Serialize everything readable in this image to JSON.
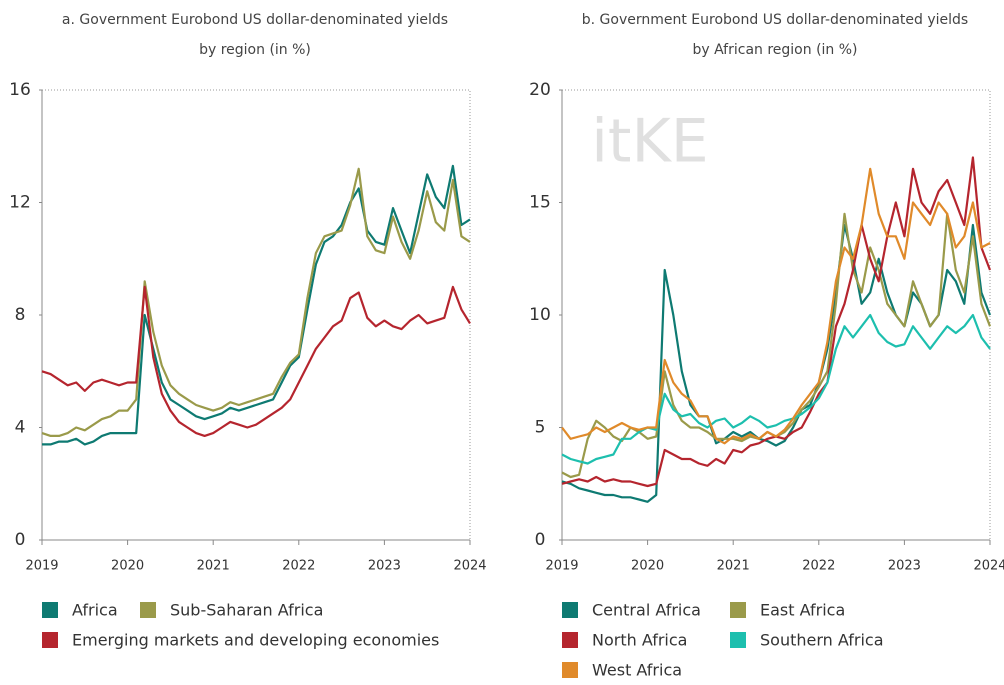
{
  "watermark": "itKE",
  "chart_data": [
    {
      "type": "line",
      "title": [
        "a. Government Eurobond US dollar-denominated yields",
        "by region (in %)"
      ],
      "x": [
        2019,
        2019.1,
        2019.2,
        2019.3,
        2019.4,
        2019.5,
        2019.6,
        2019.7,
        2019.8,
        2019.9,
        2020,
        2020.1,
        2020.2,
        2020.3,
        2020.4,
        2020.5,
        2020.6,
        2020.7,
        2020.8,
        2020.9,
        2021,
        2021.1,
        2021.2,
        2021.3,
        2021.4,
        2021.5,
        2021.6,
        2021.7,
        2021.8,
        2021.9,
        2022,
        2022.1,
        2022.2,
        2022.3,
        2022.4,
        2022.5,
        2022.6,
        2022.7,
        2022.8,
        2022.9,
        2023,
        2023.1,
        2023.2,
        2023.3,
        2023.4,
        2023.5,
        2023.6,
        2023.7,
        2023.8,
        2023.9,
        2024
      ],
      "xlim": [
        2019,
        2024
      ],
      "xticks": [
        2019,
        2020,
        2021,
        2022,
        2023,
        2024
      ],
      "ylim": [
        0,
        16
      ],
      "yticks": [
        0,
        4,
        8,
        12,
        16
      ],
      "series": [
        {
          "name": "Africa",
          "color": "#0e7a72",
          "values": [
            3.4,
            3.4,
            3.5,
            3.5,
            3.6,
            3.4,
            3.5,
            3.7,
            3.8,
            3.8,
            3.8,
            3.8,
            8.0,
            6.8,
            5.6,
            5.0,
            4.8,
            4.6,
            4.4,
            4.3,
            4.4,
            4.5,
            4.7,
            4.6,
            4.7,
            4.8,
            4.9,
            5.0,
            5.6,
            6.2,
            6.5,
            8.2,
            9.8,
            10.6,
            10.8,
            11.2,
            12.0,
            12.5,
            11.0,
            10.6,
            10.5,
            11.8,
            11.0,
            10.2,
            11.6,
            13.0,
            12.2,
            11.8,
            13.3,
            11.2,
            11.4
          ]
        },
        {
          "name": "Sub-Saharan Africa",
          "color": "#9a9a4a",
          "values": [
            3.8,
            3.7,
            3.7,
            3.8,
            4.0,
            3.9,
            4.1,
            4.3,
            4.4,
            4.6,
            4.6,
            5.0,
            9.2,
            7.4,
            6.2,
            5.5,
            5.2,
            5.0,
            4.8,
            4.7,
            4.6,
            4.7,
            4.9,
            4.8,
            4.9,
            5.0,
            5.1,
            5.2,
            5.8,
            6.3,
            6.6,
            8.6,
            10.2,
            10.8,
            10.9,
            11.0,
            11.9,
            13.2,
            10.8,
            10.3,
            10.2,
            11.5,
            10.6,
            10.0,
            11.0,
            12.4,
            11.3,
            11.0,
            12.8,
            10.8,
            10.6
          ]
        },
        {
          "name": "Emerging markets and developing economies",
          "color": "#b5252e",
          "values": [
            6.0,
            5.9,
            5.7,
            5.5,
            5.6,
            5.3,
            5.6,
            5.7,
            5.6,
            5.5,
            5.6,
            5.6,
            9.0,
            6.5,
            5.2,
            4.6,
            4.2,
            4.0,
            3.8,
            3.7,
            3.8,
            4.0,
            4.2,
            4.1,
            4.0,
            4.1,
            4.3,
            4.5,
            4.7,
            5.0,
            5.6,
            6.2,
            6.8,
            7.2,
            7.6,
            7.8,
            8.6,
            8.8,
            7.9,
            7.6,
            7.8,
            7.6,
            7.5,
            7.8,
            8.0,
            7.7,
            7.8,
            7.9,
            9.0,
            8.2,
            7.7
          ]
        }
      ]
    },
    {
      "type": "line",
      "title": [
        "b. Government Eurobond US dollar-denominated yields",
        "by African region (in %)"
      ],
      "x": [
        2019,
        2019.1,
        2019.2,
        2019.3,
        2019.4,
        2019.5,
        2019.6,
        2019.7,
        2019.8,
        2019.9,
        2020,
        2020.1,
        2020.2,
        2020.3,
        2020.4,
        2020.5,
        2020.6,
        2020.7,
        2020.8,
        2020.9,
        2021,
        2021.1,
        2021.2,
        2021.3,
        2021.4,
        2021.5,
        2021.6,
        2021.7,
        2021.8,
        2021.9,
        2022,
        2022.1,
        2022.2,
        2022.3,
        2022.4,
        2022.5,
        2022.6,
        2022.7,
        2022.8,
        2022.9,
        2023,
        2023.1,
        2023.2,
        2023.3,
        2023.4,
        2023.5,
        2023.6,
        2023.7,
        2023.8,
        2023.9,
        2024
      ],
      "xlim": [
        2019,
        2024
      ],
      "xticks": [
        2019,
        2020,
        2021,
        2022,
        2023,
        2024
      ],
      "ylim": [
        0,
        20
      ],
      "yticks": [
        0,
        5,
        10,
        15,
        20
      ],
      "series": [
        {
          "name": "Central Africa",
          "color": "#0e7a72",
          "values": [
            2.6,
            2.5,
            2.3,
            2.2,
            2.1,
            2.0,
            2.0,
            1.9,
            1.9,
            1.8,
            1.7,
            2.0,
            12.0,
            10.0,
            7.5,
            6.0,
            5.5,
            5.5,
            4.3,
            4.5,
            4.8,
            4.6,
            4.8,
            4.5,
            4.4,
            4.2,
            4.4,
            5.0,
            5.8,
            6.0,
            7.0,
            8.5,
            11.0,
            14.0,
            12.5,
            10.5,
            11.0,
            12.5,
            11.0,
            10.0,
            9.5,
            11.0,
            10.5,
            9.5,
            10.0,
            12.0,
            11.5,
            10.5,
            14.0,
            11.0,
            10.0
          ]
        },
        {
          "name": "East Africa",
          "color": "#9a9a4a",
          "values": [
            3.0,
            2.8,
            2.9,
            4.5,
            5.3,
            5.0,
            4.6,
            4.4,
            5.0,
            4.8,
            4.5,
            4.6,
            7.5,
            6.0,
            5.3,
            5.0,
            5.0,
            4.8,
            4.5,
            4.5,
            4.5,
            4.4,
            4.6,
            4.5,
            4.8,
            4.6,
            4.8,
            5.2,
            5.8,
            6.2,
            6.8,
            7.5,
            10.5,
            14.5,
            12.0,
            11.0,
            13.0,
            12.0,
            10.5,
            10.0,
            9.5,
            11.5,
            10.5,
            9.5,
            10.0,
            14.5,
            12.0,
            11.0,
            13.5,
            10.5,
            9.5
          ]
        },
        {
          "name": "North Africa",
          "color": "#b5252e",
          "values": [
            2.5,
            2.6,
            2.7,
            2.6,
            2.8,
            2.6,
            2.7,
            2.6,
            2.6,
            2.5,
            2.4,
            2.5,
            4.0,
            3.8,
            3.6,
            3.6,
            3.4,
            3.3,
            3.6,
            3.4,
            4.0,
            3.9,
            4.2,
            4.3,
            4.5,
            4.6,
            4.5,
            4.8,
            5.0,
            5.7,
            6.5,
            7.0,
            9.5,
            10.5,
            12.0,
            14.0,
            12.5,
            11.5,
            13.5,
            15.0,
            13.5,
            16.5,
            15.0,
            14.5,
            15.5,
            16.0,
            15.0,
            14.0,
            17.0,
            13.0,
            12.0
          ]
        },
        {
          "name": "Southern Africa",
          "color": "#1dbfae",
          "values": [
            3.8,
            3.6,
            3.5,
            3.4,
            3.6,
            3.7,
            3.8,
            4.5,
            4.5,
            4.8,
            5.0,
            4.9,
            6.5,
            5.8,
            5.5,
            5.6,
            5.2,
            5.0,
            5.3,
            5.4,
            5.0,
            5.2,
            5.5,
            5.3,
            5.0,
            5.1,
            5.3,
            5.4,
            5.6,
            5.9,
            6.3,
            7.0,
            8.5,
            9.5,
            9.0,
            9.5,
            10.0,
            9.2,
            8.8,
            8.6,
            8.7,
            9.5,
            9.0,
            8.5,
            9.0,
            9.5,
            9.2,
            9.5,
            10.0,
            9.0,
            8.5
          ]
        },
        {
          "name": "West Africa",
          "color": "#e08a2a",
          "values": [
            5.0,
            4.5,
            4.6,
            4.7,
            5.0,
            4.8,
            5.0,
            5.2,
            5.0,
            4.9,
            5.0,
            5.0,
            8.0,
            7.0,
            6.5,
            6.2,
            5.5,
            5.5,
            4.5,
            4.3,
            4.6,
            4.5,
            4.7,
            4.5,
            4.8,
            4.6,
            4.9,
            5.4,
            6.0,
            6.5,
            7.0,
            8.8,
            11.5,
            13.0,
            12.5,
            14.0,
            16.5,
            14.5,
            13.5,
            13.5,
            12.5,
            15.0,
            14.5,
            14.0,
            15.0,
            14.5,
            13.0,
            13.5,
            15.0,
            13.0,
            13.2
          ]
        }
      ]
    }
  ]
}
